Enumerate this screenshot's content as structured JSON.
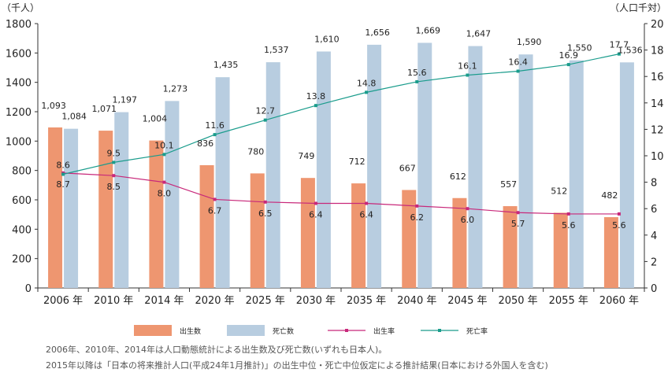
{
  "chart_data": {
    "type": "bar",
    "left_unit": "（千人）",
    "right_unit": "（人口千対）",
    "categories": [
      "2006 年",
      "2010 年",
      "2014 年",
      "2020 年",
      "2025 年",
      "2030 年",
      "2035 年",
      "2040 年",
      "2045 年",
      "2050 年",
      "2055 年",
      "2060 年"
    ],
    "ylim": [
      0,
      1800
    ],
    "y_ticks": [
      0,
      200,
      400,
      600,
      800,
      1000,
      1200,
      1400,
      1600,
      1800
    ],
    "y2lim": [
      0,
      20
    ],
    "y2_ticks": [
      0,
      2,
      4,
      6,
      8,
      10,
      12,
      14,
      16,
      18,
      20
    ],
    "grid": false,
    "legend_position": "bottom",
    "bar_series": [
      {
        "name": "出生数",
        "color": "#ee9670",
        "values": [
          1093,
          1071,
          1004,
          836,
          780,
          749,
          712,
          667,
          612,
          557,
          512,
          482
        ],
        "labels": [
          "1,093",
          "1,071",
          "1,004",
          "836",
          "780",
          "749",
          "712",
          "667",
          "612",
          "557",
          "512",
          "482"
        ]
      },
      {
        "name": "死亡数",
        "color": "#b8cde0",
        "values": [
          1084,
          1197,
          1273,
          1435,
          1537,
          1610,
          1656,
          1669,
          1647,
          1590,
          1550,
          1536
        ],
        "labels": [
          "1,084",
          "1,197",
          "1,273",
          "1,435",
          "1,537",
          "1,610",
          "1,656",
          "1,669",
          "1,647",
          "1,590",
          "1,550",
          "1,536"
        ]
      }
    ],
    "line_series": [
      {
        "name": "出生率",
        "color": "#c8287a",
        "axis": "right",
        "values": [
          8.7,
          8.5,
          8.0,
          6.7,
          6.5,
          6.4,
          6.4,
          6.2,
          6.0,
          5.7,
          5.6,
          5.6
        ],
        "labels": [
          "8.7",
          "8.5",
          "8.0",
          "6.7",
          "6.5",
          "6.4",
          "6.4",
          "6.2",
          "6.0",
          "5.7",
          "5.6",
          "5.6"
        ]
      },
      {
        "name": "死亡率",
        "color": "#1a9c8c",
        "axis": "right",
        "values": [
          8.6,
          9.5,
          10.1,
          11.6,
          12.7,
          13.8,
          14.8,
          15.6,
          16.1,
          16.4,
          16.9,
          17.7
        ],
        "labels": [
          "8.6",
          "9.5",
          "10.1",
          "11.6",
          "12.7",
          "13.8",
          "14.8",
          "15.6",
          "16.1",
          "16.4",
          "16.9",
          "17.7"
        ]
      }
    ],
    "footnotes": [
      "2006年、2010年、2014年は人口動態統計による出生数及び死亡数(いずれも日本人)。",
      "2015年以降は「日本の将来推計人口(平成24年1月推計)」の出生中位・死亡中位仮定による推計結果(日本における外国人を含む)"
    ]
  }
}
